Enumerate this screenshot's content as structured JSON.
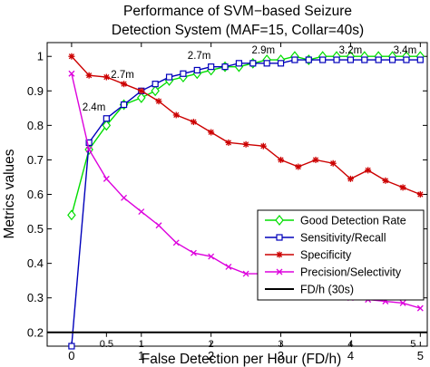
{
  "chart_data": {
    "type": "line",
    "title": [
      "Performance of SVM−based Seizure",
      "Detection System (MAF=15, Collar=40s)"
    ],
    "xlabel": "False Detection per Hour (FD/h)",
    "ylabel": "Metrics values",
    "xlim": [
      -0.35,
      5.1
    ],
    "ylim": [
      0.16,
      1.04
    ],
    "xticks": [
      0,
      1,
      2,
      3,
      4,
      5
    ],
    "yticks": [
      0.2,
      0.3,
      0.4,
      0.5,
      0.6,
      0.7,
      0.8,
      0.9,
      1
    ],
    "ytick_labels": [
      "0.2",
      "0.3",
      "0.4",
      "0.5",
      "0.6",
      "0.7",
      "0.8",
      "0.9",
      "1"
    ],
    "grid": false,
    "legend_position": "lower-right",
    "secondary_ticks": [
      {
        "x": 0.5,
        "label": "0.5"
      },
      {
        "x": 1.0,
        "label": "1"
      },
      {
        "x": 2.0,
        "label": "2"
      },
      {
        "x": 3.0,
        "label": "3"
      },
      {
        "x": 4.0,
        "label": "4"
      },
      {
        "x": 5.0,
        "label": "5"
      }
    ],
    "annotations": [
      {
        "text": "2.4m",
        "x": 0.32,
        "y": 0.835
      },
      {
        "text": "2.7m",
        "x": 0.73,
        "y": 0.93
      },
      {
        "text": "2.7m",
        "x": 1.83,
        "y": 0.985
      },
      {
        "text": "2.9m",
        "x": 2.75,
        "y": 1.0
      },
      {
        "text": "3.2m",
        "x": 4.0,
        "y": 1.0
      },
      {
        "text": "3.4m",
        "x": 4.78,
        "y": 1.0
      }
    ],
    "series": [
      {
        "name": "Good Detection Rate",
        "color": "#00dd00",
        "marker": "diamond",
        "x": [
          0,
          0.25,
          0.5,
          0.75,
          1.0,
          1.2,
          1.4,
          1.6,
          1.8,
          2.0,
          2.2,
          2.4,
          2.6,
          2.8,
          3.0,
          3.2,
          3.4,
          3.6,
          3.8,
          4.0,
          4.2,
          4.4,
          4.6,
          4.8,
          5.0
        ],
        "y": [
          0.54,
          0.73,
          0.8,
          0.86,
          0.88,
          0.9,
          0.93,
          0.94,
          0.95,
          0.96,
          0.97,
          0.97,
          0.98,
          0.99,
          0.99,
          1.0,
          0.99,
          1.0,
          1.0,
          1.0,
          1.0,
          1.0,
          1.0,
          1.0,
          1.0
        ]
      },
      {
        "name": "Sensitivity/Recall",
        "color": "#0000bb",
        "marker": "square",
        "x": [
          0,
          0.25,
          0.5,
          0.75,
          1.0,
          1.2,
          1.4,
          1.6,
          1.8,
          2.0,
          2.2,
          2.4,
          2.6,
          2.8,
          3.0,
          3.2,
          3.4,
          3.6,
          3.8,
          4.0,
          4.2,
          4.4,
          4.6,
          4.8,
          5.0
        ],
        "y": [
          0.16,
          0.75,
          0.82,
          0.86,
          0.9,
          0.92,
          0.94,
          0.95,
          0.96,
          0.97,
          0.97,
          0.98,
          0.98,
          0.98,
          0.98,
          0.99,
          0.99,
          0.99,
          0.99,
          0.99,
          0.99,
          0.99,
          0.99,
          0.99,
          0.99
        ]
      },
      {
        "name": "Specificity",
        "color": "#cc0000",
        "marker": "star",
        "x": [
          0,
          0.25,
          0.5,
          0.75,
          1.0,
          1.25,
          1.5,
          1.75,
          2.0,
          2.25,
          2.5,
          2.75,
          3.0,
          3.25,
          3.5,
          3.75,
          4.0,
          4.25,
          4.5,
          4.75,
          5.0
        ],
        "y": [
          1.0,
          0.945,
          0.94,
          0.92,
          0.9,
          0.87,
          0.83,
          0.81,
          0.78,
          0.75,
          0.745,
          0.74,
          0.7,
          0.68,
          0.7,
          0.69,
          0.645,
          0.67,
          0.64,
          0.62,
          0.6
        ]
      },
      {
        "name": "Precision/Selectivity",
        "color": "#dd00dd",
        "marker": "x",
        "x": [
          0,
          0.25,
          0.5,
          0.75,
          1.0,
          1.25,
          1.5,
          1.75,
          2.0,
          2.25,
          2.5,
          2.75,
          3.0,
          3.25,
          3.5,
          3.75,
          4.0,
          4.25,
          4.5,
          4.75,
          5.0
        ],
        "y": [
          0.95,
          0.73,
          0.645,
          0.59,
          0.55,
          0.51,
          0.46,
          0.43,
          0.42,
          0.39,
          0.37,
          0.37,
          0.35,
          0.33,
          0.32,
          0.31,
          0.3,
          0.295,
          0.29,
          0.285,
          0.27
        ]
      },
      {
        "name": "FD/h (30s)",
        "color": "#000000",
        "marker": "none",
        "x": [
          -0.35,
          5.1
        ],
        "y": [
          0.2,
          0.2
        ]
      }
    ]
  }
}
